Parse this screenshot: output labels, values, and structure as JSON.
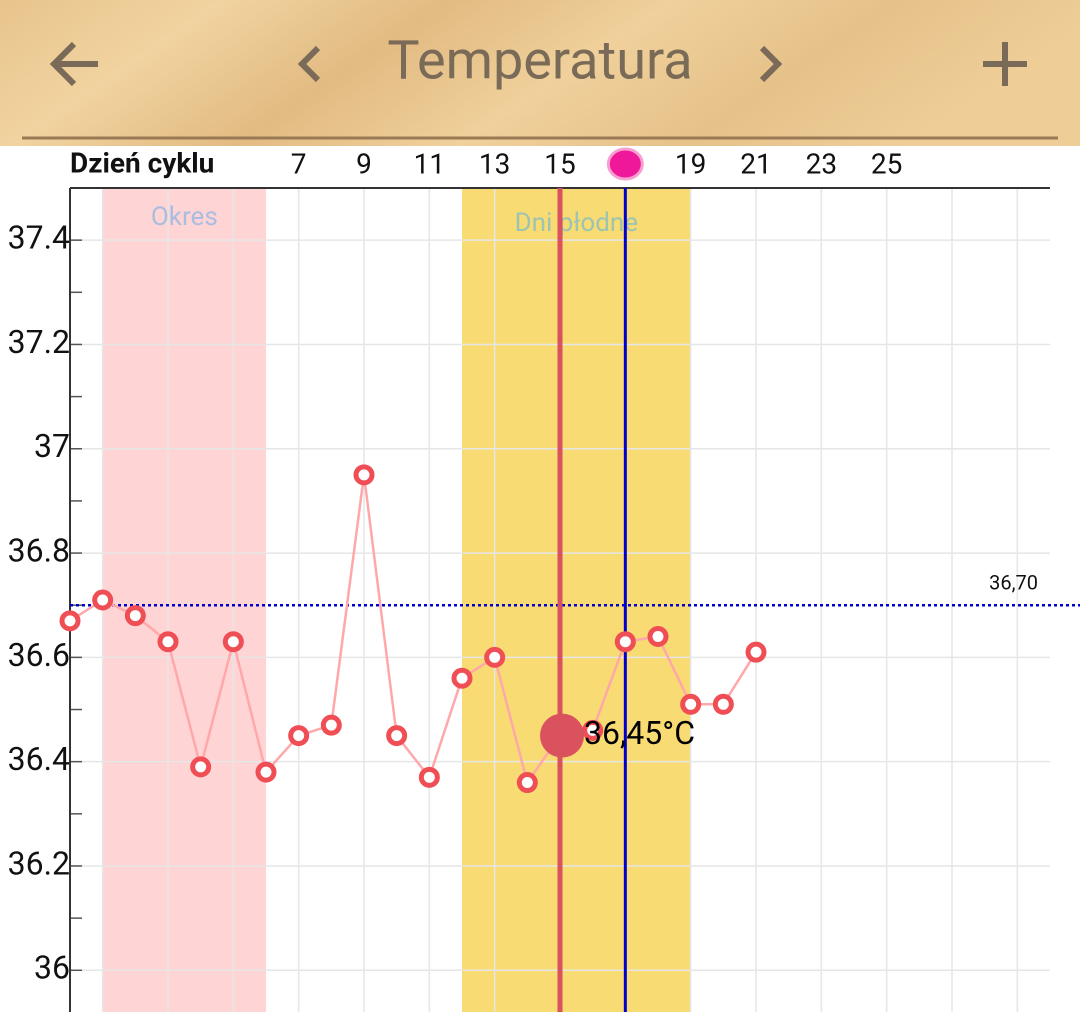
{
  "header": {
    "title": "Temperatura"
  },
  "chart_data": {
    "type": "line",
    "x_label": "Dzień cyklu",
    "x": [
      0,
      1,
      2,
      3,
      4,
      5,
      6,
      7,
      8,
      9,
      10,
      11,
      12,
      13,
      14,
      15,
      16,
      17,
      18,
      19,
      20,
      21
    ],
    "series": [
      {
        "color": "#f04e55",
        "line_color": "#ffa8aa",
        "values": [
          36.67,
          36.71,
          36.68,
          36.63,
          36.39,
          36.63,
          36.38,
          36.45,
          36.47,
          36.95,
          36.45,
          36.37,
          36.56,
          36.6,
          36.36,
          36.45,
          36.46,
          36.63,
          36.64,
          36.51,
          36.51,
          36.61
        ]
      }
    ],
    "xlim": [
      0,
      30
    ],
    "ylim": [
      35.92,
      37.5
    ],
    "xticks": [
      7,
      9,
      11,
      13,
      15,
      {
        "value": 17,
        "label": null
      },
      19,
      21,
      23,
      25
    ],
    "minor_xticks": [
      1,
      3,
      5,
      27,
      29
    ],
    "yticks": [
      36,
      36.2,
      36.4,
      36.6,
      36.8,
      37,
      37.2,
      37.4
    ],
    "minor_yticks": [
      36.1,
      36.3,
      36.5,
      36.7,
      36.9,
      37.1,
      37.3
    ],
    "grid": true,
    "bands": [
      {
        "label": "Okres",
        "from": 1,
        "to": 6,
        "color": "#ffd4d4",
        "label_color": "#a9bde0"
      },
      {
        "label": "Dni płodne",
        "from": 12,
        "to": 19,
        "color": "#f8db72",
        "label_color": "#9cc4b0"
      }
    ],
    "reference_line": {
      "value": 36.7,
      "label": "36,70",
      "color": "#0000cc"
    },
    "selected": {
      "index": 15,
      "value_label": "36,45°C",
      "color": "#d9525e"
    },
    "ovulation_day": 17,
    "ovulation_color": "#0000cc"
  }
}
